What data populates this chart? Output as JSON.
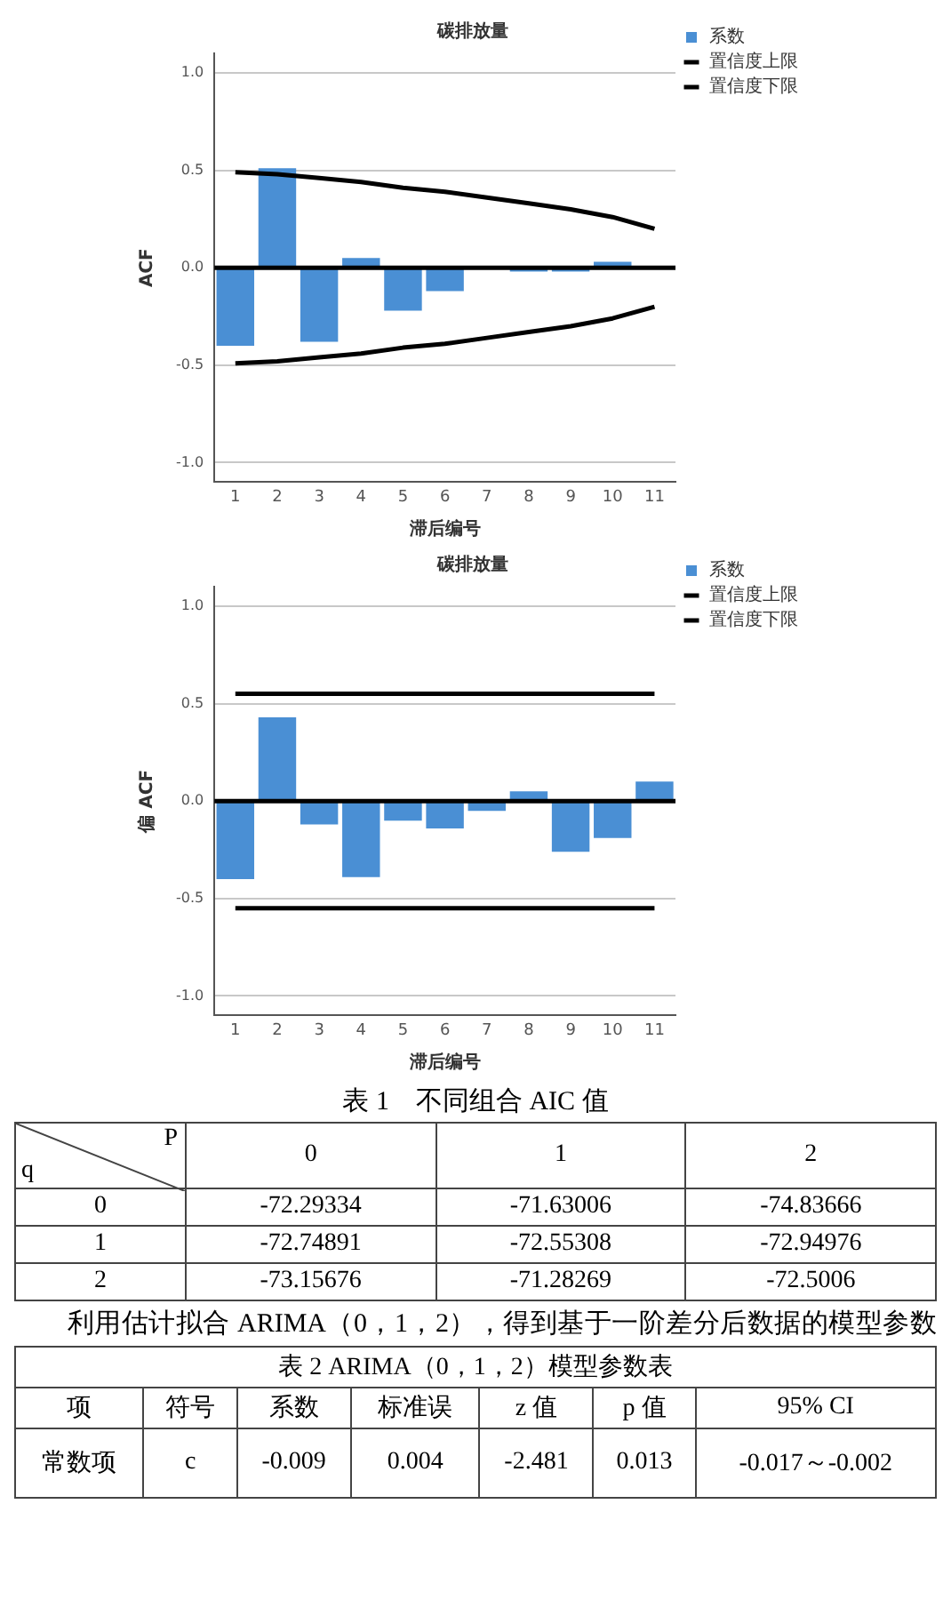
{
  "chart_data": [
    {
      "type": "bar",
      "title": "碳排放量",
      "xlabel": "滞后编号",
      "ylabel": "ACF",
      "categories": [
        "1",
        "2",
        "3",
        "4",
        "5",
        "6",
        "7",
        "8",
        "9",
        "10",
        "11"
      ],
      "series": [
        {
          "name": "系数",
          "type": "bar",
          "color": "#4a8fd4",
          "values": [
            -0.4,
            0.51,
            -0.38,
            0.05,
            -0.22,
            -0.12,
            0,
            -0.02,
            -0.02,
            0.03,
            0
          ]
        },
        {
          "name": "置信度上限",
          "type": "line",
          "color": "#000000",
          "values": [
            0.49,
            0.48,
            0.46,
            0.44,
            0.41,
            0.39,
            0.36,
            0.33,
            0.3,
            0.26,
            0.2
          ]
        },
        {
          "name": "置信度下限",
          "type": "line",
          "color": "#000000",
          "values": [
            -0.49,
            -0.48,
            -0.46,
            -0.44,
            -0.41,
            -0.39,
            -0.36,
            -0.33,
            -0.3,
            -0.26,
            -0.2
          ]
        }
      ],
      "ylim": [
        -1.1,
        1.1
      ],
      "yticks": [
        {
          "value": -1,
          "label": "-1.0"
        },
        {
          "value": -0.5,
          "label": "-0.5"
        },
        {
          "value": 0,
          "label": "0.0"
        },
        {
          "value": 0.5,
          "label": "0.5"
        },
        {
          "value": 1,
          "label": "1.0"
        }
      ],
      "grid": "y",
      "legend": "top right",
      "marker": "none",
      "line_style": "solid",
      "ref_lines": [
        {
          "axis": "y",
          "value": 0,
          "color": "#000000"
        }
      ]
    },
    {
      "type": "bar",
      "title": "碳排放量",
      "xlabel": "滞后编号",
      "ylabel": "偏 ACF",
      "categories": [
        "1",
        "2",
        "3",
        "4",
        "5",
        "6",
        "7",
        "8",
        "9",
        "10",
        "11"
      ],
      "series": [
        {
          "name": "系数",
          "type": "bar",
          "color": "#4a8fd4",
          "values": [
            -0.4,
            0.43,
            -0.12,
            -0.39,
            -0.1,
            -0.14,
            -0.05,
            0.05,
            -0.26,
            -0.19,
            0.1
          ]
        },
        {
          "name": "置信度上限",
          "type": "line",
          "color": "#000000",
          "values": [
            0.55,
            0.55,
            0.55,
            0.55,
            0.55,
            0.55,
            0.55,
            0.55,
            0.55,
            0.55,
            0.55
          ]
        },
        {
          "name": "置信度下限",
          "type": "line",
          "color": "#000000",
          "values": [
            -0.55,
            -0.55,
            -0.55,
            -0.55,
            -0.55,
            -0.55,
            -0.55,
            -0.55,
            -0.55,
            -0.55,
            -0.55
          ]
        }
      ],
      "ylim": [
        -1.1,
        1.1
      ],
      "yticks": [
        {
          "value": -1,
          "label": "-1.0"
        },
        {
          "value": -0.5,
          "label": "-0.5"
        },
        {
          "value": 0,
          "label": "0.0"
        },
        {
          "value": 0.5,
          "label": "0.5"
        },
        {
          "value": 1,
          "label": "1.0"
        }
      ],
      "grid": "y",
      "legend": "top right",
      "marker": "none",
      "line_style": "solid",
      "ref_lines": [
        {
          "axis": "y",
          "value": 0,
          "color": "#000000"
        }
      ]
    },
    {
      "type": "heatmap",
      "title": "表 1　不同组合 AIC 值",
      "xlabel": "P",
      "ylabel": "q",
      "categories": [
        "0",
        "1",
        "2"
      ],
      "y_categories": [
        "0",
        "1",
        "2"
      ],
      "cells": [
        [
          -72.29334,
          -71.63006,
          -74.83666
        ],
        [
          -72.74891,
          -72.55308,
          -72.94976
        ],
        [
          -73.15676,
          -71.28269,
          -72.5006
        ]
      ],
      "cell_labels": [
        [
          "-72.29334",
          "-71.63006",
          "-74.83666"
        ],
        [
          "-72.74891",
          "-72.55308",
          "-72.94976"
        ],
        [
          "-73.15676",
          "-71.28269",
          "-72.5006"
        ]
      ],
      "annotations": [
        "利用估计拟合 ARIMA（0，1，2），得到基于一阶差分后数据的模型参数"
      ]
    },
    {
      "type": "heatmap",
      "title": "表 2 ARIMA（0，1，2）模型参数表",
      "ylabel": "项",
      "categories": [
        "符号",
        "系数",
        "标准误",
        "z 值",
        "p 值",
        "95% CI"
      ],
      "y_categories": [
        "常数项"
      ],
      "cells": [
        [
          null,
          -0.009,
          0.004,
          -2.481,
          0.013,
          null
        ]
      ],
      "cell_labels": [
        [
          "c",
          "-0.009",
          "0.004",
          "-2.481",
          "0.013",
          "-0.017～-0.002"
        ]
      ]
    }
  ]
}
